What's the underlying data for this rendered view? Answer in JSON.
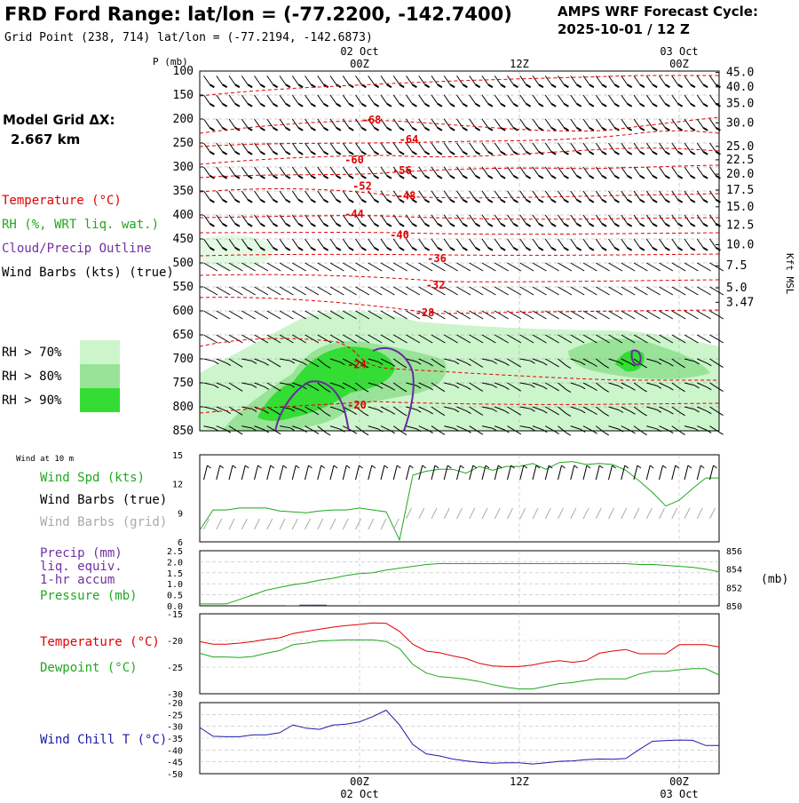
{
  "header": {
    "title": "FRD Ford Range:  lat/lon = (-77.2200, -142.7400)",
    "grid_point": "Grid Point (238, 714) lat/lon = (-77.2194, -142.6873)",
    "cycle_line1": "AMPS WRF Forecast Cycle:",
    "cycle_line2": "2025-10-01 / 12  Z"
  },
  "model_grid": {
    "label": "Model Grid ΔX:",
    "value": "2.667 km"
  },
  "time_axis": {
    "top_labels": [
      {
        "date": "02 Oct",
        "hour": "00Z",
        "t": 12
      },
      {
        "date": "",
        "hour": "12Z",
        "t": 24
      },
      {
        "date": "03 Oct",
        "hour": "00Z",
        "t": 36
      }
    ],
    "bottom_labels": [
      {
        "hour": "00Z",
        "date": "02 Oct",
        "t": 12
      },
      {
        "hour": "12Z",
        "date": "",
        "t": 24
      },
      {
        "hour": "00Z",
        "date": "03 Oct",
        "t": 36
      }
    ],
    "range": [
      0,
      39
    ]
  },
  "legend": {
    "temperature": "Temperature (°C)",
    "rh": "RH (%, WRT liq. wat.)",
    "cloud": "Cloud/Precip Outline",
    "wind": "Wind Barbs (kts) (true)",
    "rh70": "RH > 70%",
    "rh80": "RH > 80%",
    "rh90": "RH > 90%",
    "colors": {
      "temp": "#ff0000",
      "rh": "#1fa81f",
      "cloud": "#7030a0",
      "rh70": "#ccf5cc",
      "rh80": "#99e399",
      "rh90": "#33dd33"
    }
  },
  "chart_data": [
    {
      "type": "cross-section",
      "p_label": "P (mb)",
      "right_label": "Kft MSL",
      "p_ticks": [
        "100",
        "150",
        "200",
        "250",
        "300",
        "350",
        "400",
        "450",
        "500",
        "550",
        "600",
        "650",
        "700",
        "750",
        "800",
        "850"
      ],
      "kft_ticks": [
        {
          "label": "45.0",
          "p": 103
        },
        {
          "label": "40.0",
          "p": 133
        },
        {
          "label": "35.0",
          "p": 168
        },
        {
          "label": "30.0",
          "p": 208
        },
        {
          "label": "25.0",
          "p": 257
        },
        {
          "label": "22.5",
          "p": 285
        },
        {
          "label": "20.0",
          "p": 315
        },
        {
          "label": "17.5",
          "p": 348
        },
        {
          "label": "15.0",
          "p": 383
        },
        {
          "label": "12.5",
          "p": 421
        },
        {
          "label": "10.0",
          "p": 462
        },
        {
          "label": "7.5",
          "p": 506
        },
        {
          "label": "5.0",
          "p": 552
        },
        {
          "label": "3.47",
          "p": 582
        }
      ],
      "temp_labels": [
        {
          "v": "-68",
          "t": 12.9,
          "p": 202
        },
        {
          "v": "-64",
          "t": 15.7,
          "p": 243
        },
        {
          "v": "-60",
          "t": 11.6,
          "p": 285
        },
        {
          "v": "-56",
          "t": 15.2,
          "p": 307
        },
        {
          "v": "-52",
          "t": 12.2,
          "p": 340
        },
        {
          "v": "-48",
          "t": 15.5,
          "p": 360
        },
        {
          "v": "-44",
          "t": 11.6,
          "p": 398
        },
        {
          "v": "-40",
          "t": 15,
          "p": 442
        },
        {
          "v": "-36",
          "t": 17.8,
          "p": 491
        },
        {
          "v": "-32",
          "t": 17.7,
          "p": 546
        },
        {
          "v": "-28",
          "t": 16.9,
          "p": 604
        },
        {
          "v": "-24",
          "t": 11.8,
          "p": 712
        },
        {
          "v": "-20",
          "t": 11.8,
          "p": 796
        }
      ]
    },
    {
      "type": "line",
      "title": "Wind at 10 m",
      "labels": [
        "Wind Spd (kts)",
        "Wind Barbs (true)",
        "Wind Barbs (grid)"
      ],
      "ylim": [
        6,
        15
      ],
      "y_ticks": [
        "15",
        "12",
        "9",
        "6"
      ],
      "x": [
        0,
        1,
        2,
        3,
        4,
        5,
        6,
        7,
        8,
        9,
        10,
        11,
        12,
        13,
        14,
        15,
        16,
        17,
        18,
        19,
        20,
        21,
        22,
        23,
        24,
        25,
        26,
        27,
        28,
        29,
        30,
        31,
        32,
        33,
        34,
        35,
        36,
        37,
        38,
        39
      ],
      "series": [
        {
          "name": "Wind Spd",
          "values": [
            7.2,
            9.3,
            9.3,
            9.5,
            9.5,
            9.5,
            9.2,
            9.1,
            9.0,
            9.2,
            9.3,
            9.3,
            9.5,
            9.3,
            9.1,
            6.2,
            12.9,
            13.3,
            13.5,
            13.5,
            13.1,
            13.8,
            13.4,
            13.8,
            13.8,
            14.1,
            13.5,
            14.2,
            14.3,
            14.0,
            14.1,
            14.0,
            13.4,
            12.3,
            11.1,
            9.7,
            10.3,
            11.5,
            12.6,
            12.6
          ]
        }
      ]
    },
    {
      "type": "line",
      "labels": [
        "Precip (mm)",
        "liq. equiv.",
        "1-hr accum",
        "Pressure (mb)"
      ],
      "y_ticks": [
        "2.5",
        "2.0",
        "1.5",
        "1.0",
        "0.5",
        "0.0"
      ],
      "y2_ticks": [
        "856",
        "854",
        "852",
        "850"
      ],
      "y2_label": "(mb)",
      "ylim": [
        0,
        2.5
      ],
      "y2lim": [
        850,
        856
      ],
      "x": [
        0,
        1,
        2,
        3,
        4,
        5,
        6,
        7,
        8,
        9,
        10,
        11,
        12,
        13,
        14,
        15,
        16,
        17,
        18,
        19,
        20,
        21,
        22,
        23,
        24,
        25,
        26,
        27,
        28,
        29,
        30,
        31,
        32,
        33,
        34,
        35,
        36,
        37,
        38,
        39
      ],
      "series": [
        {
          "name": "Pressure",
          "values": [
            850.2,
            850.2,
            850.2,
            850.7,
            851.2,
            851.7,
            852.0,
            852.3,
            852.5,
            852.8,
            853.0,
            853.3,
            853.5,
            853.6,
            853.9,
            854.1,
            854.3,
            854.5,
            854.6,
            854.6,
            854.6,
            854.6,
            854.6,
            854.6,
            854.6,
            854.6,
            854.6,
            854.6,
            854.6,
            854.6,
            854.6,
            854.6,
            854.6,
            854.5,
            854.5,
            854.4,
            854.3,
            854.2,
            854.0,
            853.7
          ]
        },
        {
          "name": "Precip",
          "values": [
            0,
            0,
            0,
            0,
            0,
            0,
            0,
            0.02,
            0.05,
            0.05,
            0,
            0,
            0,
            0,
            0,
            0,
            0,
            0,
            0,
            0,
            0,
            0,
            0,
            0,
            0,
            0,
            0,
            0,
            0,
            0,
            0,
            0,
            0,
            0,
            0,
            0,
            0,
            0,
            0,
            0
          ]
        }
      ]
    },
    {
      "type": "line",
      "labels": [
        "Temperature (°C)",
        "Dewpoint (°C)"
      ],
      "ylim": [
        -30,
        -15
      ],
      "y_ticks": [
        "-15",
        "-20",
        "-25",
        "-30"
      ],
      "x": [
        0,
        1,
        2,
        3,
        4,
        5,
        6,
        7,
        8,
        9,
        10,
        11,
        12,
        13,
        14,
        15,
        16,
        17,
        18,
        19,
        20,
        21,
        22,
        23,
        24,
        25,
        26,
        27,
        28,
        29,
        30,
        31,
        32,
        33,
        34,
        35,
        36,
        37,
        38,
        39
      ],
      "series": [
        {
          "name": "Temperature",
          "values": [
            -20.2,
            -20.7,
            -20.7,
            -20.5,
            -20.2,
            -19.8,
            -19.5,
            -18.7,
            -18.3,
            -17.9,
            -17.5,
            -17.2,
            -17.0,
            -16.7,
            -16.8,
            -18.3,
            -20.7,
            -22.0,
            -22.3,
            -22.9,
            -23.4,
            -24.3,
            -24.8,
            -24.9,
            -24.9,
            -24.6,
            -24.1,
            -23.8,
            -24.1,
            -23.8,
            -22.4,
            -22.0,
            -21.7,
            -22.5,
            -22.5,
            -22.5,
            -20.8,
            -20.8,
            -20.8,
            -21.2
          ]
        },
        {
          "name": "Dewpoint",
          "values": [
            -22.4,
            -23.1,
            -23.1,
            -23.2,
            -23.0,
            -22.4,
            -21.9,
            -20.8,
            -20.5,
            -20.1,
            -20.0,
            -19.9,
            -19.9,
            -19.9,
            -20.2,
            -21.5,
            -24.5,
            -26.1,
            -26.8,
            -27.0,
            -27.3,
            -27.7,
            -28.3,
            -28.8,
            -29.1,
            -29.1,
            -28.6,
            -28.1,
            -27.9,
            -27.5,
            -27.2,
            -27.2,
            -27.2,
            -26.3,
            -25.8,
            -25.8,
            -25.5,
            -25.3,
            -25.3,
            -26.5
          ]
        }
      ]
    },
    {
      "type": "line",
      "labels": [
        "Wind Chill T (°C)"
      ],
      "ylim": [
        -50,
        -20
      ],
      "y_ticks": [
        "-20",
        "-25",
        "-30",
        "-35",
        "-40",
        "-45",
        "-50"
      ],
      "x": [
        0,
        1,
        2,
        3,
        4,
        5,
        6,
        7,
        8,
        9,
        10,
        11,
        12,
        13,
        14,
        15,
        16,
        17,
        18,
        19,
        20,
        21,
        22,
        23,
        24,
        25,
        26,
        27,
        28,
        29,
        30,
        31,
        32,
        33,
        34,
        35,
        36,
        37,
        38,
        39
      ],
      "series": [
        {
          "name": "Wind Chill",
          "values": [
            -30.5,
            -34.2,
            -34.4,
            -34.4,
            -33.6,
            -33.6,
            -32.7,
            -29.4,
            -30.8,
            -31.3,
            -29.5,
            -29.1,
            -28.1,
            -25.9,
            -23.2,
            -29.4,
            -37.7,
            -41.6,
            -42.5,
            -43.8,
            -44.6,
            -45.2,
            -45.6,
            -45.4,
            -45.4,
            -45.9,
            -45.4,
            -44.8,
            -44.6,
            -44.1,
            -43.8,
            -43.9,
            -43.6,
            -39.8,
            -36.3,
            -36.0,
            -35.8,
            -35.9,
            -38.1,
            -38.1
          ]
        }
      ]
    }
  ]
}
